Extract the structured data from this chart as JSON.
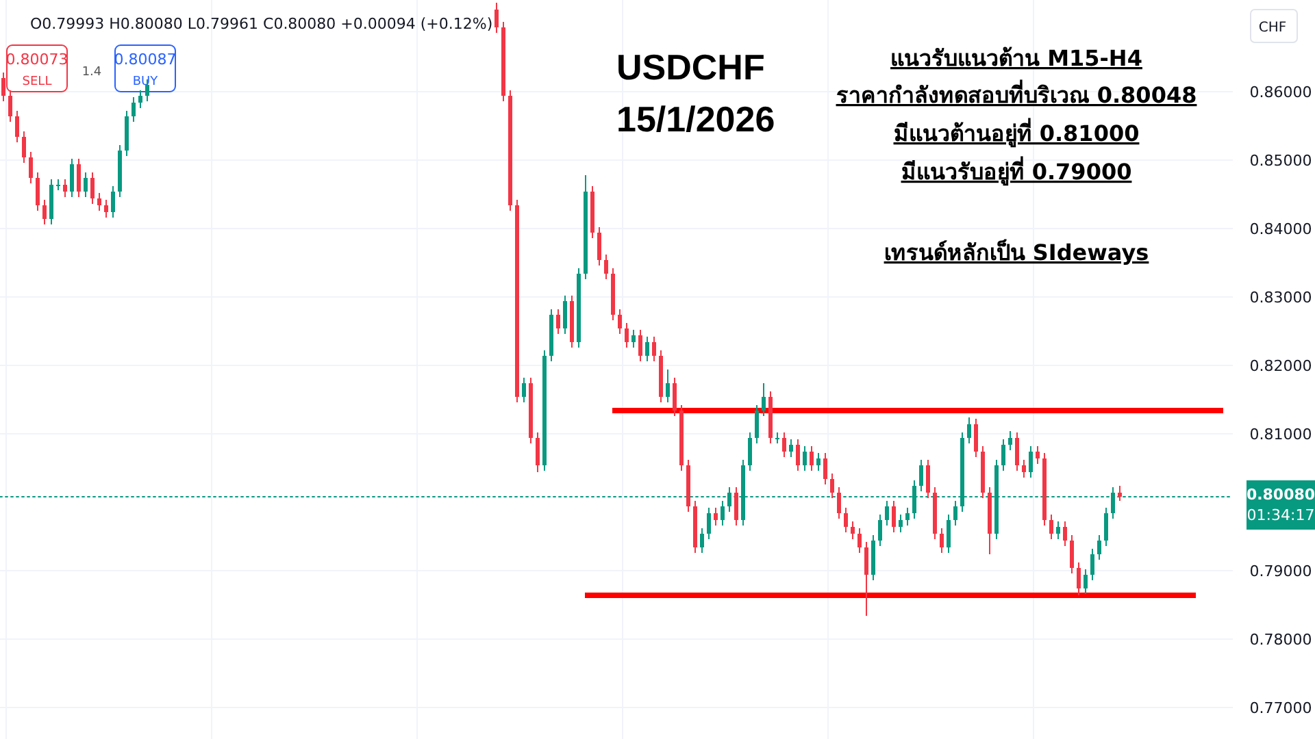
{
  "chart_data": {
    "type": "candlestick",
    "title": "USDCHF",
    "subtitle": "15/1/2026",
    "categories": [
      null,
      null,
      null,
      null,
      null,
      null,
      null,
      null,
      null,
      null,
      null,
      null,
      null,
      null,
      null,
      null,
      null,
      null,
      null,
      null,
      null,
      null,
      null,
      null,
      null,
      null,
      null,
      null,
      null,
      null,
      null,
      null,
      null,
      null,
      null,
      null,
      null,
      null,
      null,
      null,
      null,
      null,
      null,
      null,
      null,
      null,
      null,
      null,
      null,
      null,
      null,
      null,
      null,
      null,
      null,
      null,
      null,
      null,
      null,
      null,
      null,
      null,
      null,
      null,
      null,
      null,
      null,
      null,
      null,
      null,
      null,
      null,
      null,
      null,
      null,
      null,
      null,
      null,
      null,
      null,
      null,
      null,
      null,
      null,
      null,
      null,
      null,
      null,
      null,
      null,
      null,
      null,
      null,
      null,
      null,
      null,
      null,
      null,
      null,
      null,
      null,
      null,
      null,
      null,
      null,
      null,
      null,
      null,
      null,
      null,
      null,
      null,
      null,
      null,
      null,
      null,
      null,
      null,
      null,
      null,
      null,
      null,
      null,
      null,
      null,
      null,
      null,
      null,
      null,
      null,
      null,
      null,
      null,
      null,
      null,
      null,
      null,
      null,
      null,
      null,
      null,
      null,
      null,
      null,
      null,
      null,
      null,
      null,
      null,
      null,
      null,
      null,
      null,
      null,
      null,
      null,
      null,
      null,
      null,
      null,
      null,
      null,
      null,
      null,
      null,
      null,
      null,
      null,
      null,
      null,
      null,
      null,
      null,
      null,
      null,
      null,
      null,
      null,
      null,
      null
    ],
    "ohlc": [
      [
        0.862,
        0.8628,
        0.8586,
        0.8594
      ],
      [
        0.8594,
        0.8602,
        0.8556,
        0.8564
      ],
      [
        0.8564,
        0.8572,
        0.8526,
        0.8534
      ],
      [
        0.8534,
        0.8542,
        0.8496,
        0.8504
      ],
      [
        0.8504,
        0.8512,
        0.8466,
        0.8474
      ],
      [
        0.8474,
        0.8482,
        0.8426,
        0.8434
      ],
      [
        0.8434,
        0.8442,
        0.8406,
        0.8414
      ],
      [
        0.8414,
        0.8472,
        0.8406,
        0.8464
      ],
      [
        0.8464,
        0.8472,
        0.8456,
        0.8464
      ],
      [
        0.8464,
        0.8472,
        0.8446,
        0.8454
      ],
      [
        0.8454,
        0.8502,
        0.8446,
        0.8494
      ],
      [
        0.8494,
        0.8502,
        0.8446,
        0.8454
      ],
      [
        0.8454,
        0.8482,
        0.8446,
        0.8474
      ],
      [
        0.8474,
        0.8482,
        0.8436,
        0.8444
      ],
      [
        0.8444,
        0.8452,
        0.8426,
        0.8434
      ],
      [
        0.8434,
        0.8442,
        0.8416,
        0.8424
      ],
      [
        0.8424,
        0.8462,
        0.8416,
        0.8454
      ],
      [
        0.8454,
        0.8522,
        0.8446,
        0.8514
      ],
      [
        0.8514,
        0.8572,
        0.8506,
        0.8564
      ],
      [
        0.8564,
        0.8592,
        0.8556,
        0.8584
      ],
      [
        0.8584,
        0.8602,
        0.8576,
        0.8594
      ],
      [
        0.8594,
        0.8618,
        0.8586,
        0.861
      ],
      null,
      null,
      null,
      null,
      null,
      null,
      null,
      null,
      null,
      null,
      null,
      null,
      null,
      null,
      null,
      null,
      null,
      null,
      null,
      null,
      null,
      null,
      null,
      null,
      null,
      null,
      null,
      null,
      null,
      null,
      null,
      null,
      null,
      null,
      null,
      null,
      null,
      null,
      null,
      null,
      null,
      null,
      null,
      null,
      null,
      null,
      null,
      null,
      null,
      null,
      [
        0.872,
        0.873,
        0.8686,
        0.8694
      ],
      [
        0.8694,
        0.8702,
        0.8586,
        0.8594
      ],
      [
        0.8594,
        0.8602,
        0.8426,
        0.8434
      ],
      [
        0.8434,
        0.8442,
        0.8146,
        0.8154
      ],
      [
        0.8154,
        0.8182,
        0.8146,
        0.8174
      ],
      [
        0.8174,
        0.8182,
        0.8086,
        0.8094
      ],
      [
        0.8094,
        0.8102,
        0.8044,
        0.8054
      ],
      [
        0.8054,
        0.8222,
        0.8046,
        0.8214
      ],
      [
        0.8214,
        0.8282,
        0.8206,
        0.8274
      ],
      [
        0.8274,
        0.8282,
        0.8246,
        0.8254
      ],
      [
        0.8254,
        0.8302,
        0.8246,
        0.8294
      ],
      [
        0.8294,
        0.8302,
        0.8226,
        0.8234
      ],
      [
        0.8234,
        0.8342,
        0.8226,
        0.8334
      ],
      [
        0.8334,
        0.8478,
        0.8326,
        0.8454
      ],
      [
        0.8454,
        0.8462,
        0.8386,
        0.8394
      ],
      [
        0.8394,
        0.8402,
        0.8346,
        0.8354
      ],
      [
        0.8354,
        0.8362,
        0.8326,
        0.8334
      ],
      [
        0.8334,
        0.8342,
        0.8266,
        0.8274
      ],
      [
        0.8274,
        0.8282,
        0.8246,
        0.8254
      ],
      [
        0.8254,
        0.8262,
        0.8226,
        0.8234
      ],
      [
        0.8234,
        0.8252,
        0.8226,
        0.8244
      ],
      [
        0.8244,
        0.8252,
        0.8206,
        0.8214
      ],
      [
        0.8214,
        0.8242,
        0.8206,
        0.8234
      ],
      [
        0.8234,
        0.8242,
        0.8206,
        0.8214
      ],
      [
        0.8214,
        0.8222,
        0.8146,
        0.8154
      ],
      [
        0.8154,
        0.8194,
        0.8146,
        0.8174
      ],
      [
        0.8174,
        0.8182,
        0.8126,
        0.8134
      ],
      [
        0.8134,
        0.8142,
        0.8046,
        0.8054
      ],
      [
        0.8054,
        0.8062,
        0.7986,
        0.7994
      ],
      [
        0.7994,
        0.8002,
        0.7926,
        0.7934
      ],
      [
        0.7934,
        0.7962,
        0.7926,
        0.7954
      ],
      [
        0.7954,
        0.7992,
        0.7946,
        0.7984
      ],
      [
        0.7984,
        0.7992,
        0.7966,
        0.7974
      ],
      [
        0.7974,
        0.8002,
        0.7966,
        0.7994
      ],
      [
        0.7994,
        0.8022,
        0.7986,
        0.8014
      ],
      [
        0.8014,
        0.8022,
        0.7966,
        0.7974
      ],
      [
        0.7974,
        0.8062,
        0.7966,
        0.8054
      ],
      [
        0.8054,
        0.8102,
        0.8046,
        0.8094
      ],
      [
        0.8094,
        0.8142,
        0.8086,
        0.8134
      ],
      [
        0.8134,
        0.8174,
        0.8126,
        0.8154
      ],
      [
        0.8154,
        0.8162,
        0.8086,
        0.8094
      ],
      [
        0.8094,
        0.8102,
        0.8086,
        0.8094
      ],
      [
        0.8094,
        0.8102,
        0.8066,
        0.8074
      ],
      [
        0.8074,
        0.8092,
        0.8066,
        0.8084
      ],
      [
        0.8084,
        0.8092,
        0.8046,
        0.8054
      ],
      [
        0.8054,
        0.8082,
        0.8046,
        0.8074
      ],
      [
        0.8074,
        0.8082,
        0.8046,
        0.8054
      ],
      [
        0.8054,
        0.8072,
        0.8046,
        0.8064
      ],
      [
        0.8064,
        0.8072,
        0.8026,
        0.8034
      ],
      [
        0.8034,
        0.8042,
        0.8006,
        0.8014
      ],
      [
        0.8014,
        0.8022,
        0.7976,
        0.7984
      ],
      [
        0.7984,
        0.7992,
        0.7956,
        0.7964
      ],
      [
        0.7964,
        0.7972,
        0.7946,
        0.7954
      ],
      [
        0.7954,
        0.7962,
        0.7926,
        0.7934
      ],
      [
        0.7934,
        0.7942,
        0.7834,
        0.7894
      ],
      [
        0.7894,
        0.7952,
        0.7886,
        0.7944
      ],
      [
        0.7944,
        0.7982,
        0.7936,
        0.7974
      ],
      [
        0.7974,
        0.8002,
        0.7966,
        0.7994
      ],
      [
        0.7994,
        0.8002,
        0.7956,
        0.7964
      ],
      [
        0.7964,
        0.7982,
        0.7956,
        0.7974
      ],
      [
        0.7974,
        0.7992,
        0.7966,
        0.7984
      ],
      [
        0.7984,
        0.8032,
        0.7976,
        0.8024
      ],
      [
        0.8024,
        0.8062,
        0.8016,
        0.8054
      ],
      [
        0.8054,
        0.8062,
        0.8006,
        0.8014
      ],
      [
        0.8014,
        0.8022,
        0.7946,
        0.7954
      ],
      [
        0.7954,
        0.7962,
        0.7926,
        0.7934
      ],
      [
        0.7934,
        0.7982,
        0.7926,
        0.7974
      ],
      [
        0.7974,
        0.8002,
        0.7966,
        0.7994
      ],
      [
        0.7994,
        0.8102,
        0.7986,
        0.8094
      ],
      [
        0.8094,
        0.8124,
        0.8086,
        0.8114
      ],
      [
        0.8114,
        0.8122,
        0.8066,
        0.8074
      ],
      [
        0.8074,
        0.8082,
        0.8006,
        0.8014
      ],
      [
        0.8014,
        0.8022,
        0.7924,
        0.7954
      ],
      [
        0.7954,
        0.8062,
        0.7946,
        0.8054
      ],
      [
        0.8054,
        0.8092,
        0.8046,
        0.8084
      ],
      [
        0.8084,
        0.8104,
        0.8076,
        0.8094
      ],
      [
        0.8094,
        0.8102,
        0.8046,
        0.8054
      ],
      [
        0.8054,
        0.8062,
        0.8036,
        0.8044
      ],
      [
        0.8044,
        0.8082,
        0.8036,
        0.8074
      ],
      [
        0.8074,
        0.8082,
        0.8056,
        0.8064
      ],
      [
        0.8064,
        0.8072,
        0.7966,
        0.7974
      ],
      [
        0.7974,
        0.7982,
        0.7946,
        0.7954
      ],
      [
        0.7954,
        0.7972,
        0.7946,
        0.7964
      ],
      [
        0.7964,
        0.7972,
        0.7936,
        0.7944
      ],
      [
        0.7944,
        0.7952,
        0.7896,
        0.7904
      ],
      [
        0.7904,
        0.7912,
        0.7864,
        0.7874
      ],
      [
        0.7874,
        0.7902,
        0.7866,
        0.7894
      ],
      [
        0.7894,
        0.7932,
        0.7886,
        0.7924
      ],
      [
        0.7924,
        0.7952,
        0.7916,
        0.7944
      ],
      [
        0.7944,
        0.7992,
        0.7936,
        0.7984
      ],
      [
        0.7984,
        0.8022,
        0.7976,
        0.8014
      ],
      [
        0.8014,
        0.8024,
        0.8002,
        0.8008
      ],
      null,
      null,
      null,
      null,
      null,
      null,
      null,
      null,
      null,
      null,
      null,
      null,
      null,
      null,
      null,
      null
    ],
    "colors": [
      "#f23645",
      "#f23645",
      "#f23645",
      "#f23645",
      "#f23645",
      "#f23645",
      "#f23645",
      "#089981",
      "#089981",
      "#f23645",
      "#089981",
      "#f23645",
      "#089981",
      "#f23645",
      "#f23645",
      "#f23645",
      "#089981",
      "#089981",
      "#089981",
      "#089981",
      "#089981",
      "#089981",
      null,
      null,
      null,
      null,
      null,
      null,
      null,
      null,
      null,
      null,
      null,
      null,
      null,
      null,
      null,
      null,
      null,
      null,
      null,
      null,
      null,
      null,
      null,
      null,
      null,
      null,
      null,
      null,
      null,
      null,
      null,
      null,
      null,
      null,
      null,
      null,
      null,
      null,
      null,
      null,
      null,
      null,
      null,
      null,
      null,
      null,
      null,
      null,
      null,
      null,
      "#f23645",
      "#f23645",
      "#f23645",
      "#f23645",
      "#089981",
      "#f23645",
      "#f23645",
      "#089981",
      "#089981",
      "#f23645",
      "#089981",
      "#f23645",
      "#089981",
      "#089981",
      "#f23645",
      "#f23645",
      "#f23645",
      "#f23645",
      "#f23645",
      "#f23645",
      "#089981",
      "#f23645",
      "#089981",
      "#f23645",
      "#f23645",
      "#089981",
      "#f23645",
      "#f23645",
      "#f23645",
      "#f23645",
      "#089981",
      "#089981",
      "#f23645",
      "#089981",
      "#089981",
      "#f23645",
      "#089981",
      "#089981",
      "#089981",
      "#089981",
      "#f23645",
      "#089981",
      "#f23645",
      "#089981",
      "#f23645",
      "#089981",
      "#f23645",
      "#089981",
      "#f23645",
      "#f23645",
      "#f23645",
      "#f23645",
      "#f23645",
      "#f23645",
      "#f23645",
      "#089981",
      "#089981",
      "#089981",
      "#f23645",
      "#089981",
      "#089981",
      "#089981",
      "#089981",
      "#f23645",
      "#f23645",
      "#f23645",
      "#089981",
      "#089981",
      "#089981",
      "#089981",
      "#f23645",
      "#f23645",
      "#f23645",
      "#089981",
      "#089981",
      "#089981",
      "#f23645",
      "#f23645",
      "#089981",
      "#f23645",
      "#f23645",
      "#f23645",
      "#089981",
      "#f23645",
      "#f23645",
      "#f23645",
      "#089981",
      "#089981",
      "#089981",
      "#089981",
      "#089981",
      "#f23645",
      null,
      null,
      null,
      null,
      null,
      null,
      null,
      null,
      null,
      null,
      null,
      null,
      null,
      null,
      null,
      null
    ],
    "ylim": [
      0.7654,
      0.8734
    ],
    "yticks": [
      {
        "value": 0.77,
        "label": "0.77000"
      },
      {
        "value": 0.78,
        "label": "0.78000"
      },
      {
        "value": 0.79,
        "label": "0.79000"
      },
      {
        "value": 0.81,
        "label": "0.81000"
      },
      {
        "value": 0.82,
        "label": "0.82000"
      },
      {
        "value": 0.83,
        "label": "0.83000"
      },
      {
        "value": 0.84,
        "label": "0.84000"
      },
      {
        "value": 0.85,
        "label": "0.85000"
      },
      {
        "value": 0.86,
        "label": "0.86000"
      }
    ],
    "grid": true,
    "ref_lines": [
      {
        "axis": "y",
        "value": 0.8134,
        "color": "#ff0000"
      },
      {
        "axis": "y",
        "value": 0.7864,
        "color": "#ff0000"
      },
      {
        "axis": "y",
        "value": 0.8008,
        "label": "0.80080",
        "color": "#089981",
        "line_style": "dotted"
      }
    ],
    "annotations": [
      "O0.79993 H0.80080 L0.79961 C0.80080 +0.00094 (+0.12%)",
      "0.80073",
      "SELL",
      "1.4",
      "0.80087",
      "BUY",
      "CHF",
      "01:34:17",
      "แนวรับแนวต้าน M15-H4",
      "ราคากำลังทดสอบที่บริเวณ 0.80048",
      "มีแนวต้านอยู่ที่  0.81000",
      "มีแนวรับอยู่ที่  0.79000",
      "เทรนด์หลักเป็น SIdeways"
    ]
  }
}
